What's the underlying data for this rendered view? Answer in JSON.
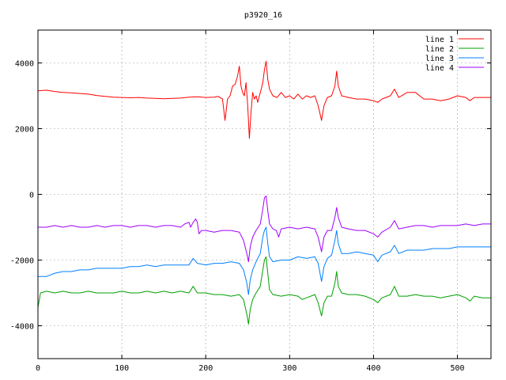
{
  "chart_data": {
    "type": "line",
    "title": "p3920_16",
    "xlabel": "",
    "ylabel": "",
    "xlim": [
      0,
      540
    ],
    "ylim": [
      -5000,
      5000
    ],
    "xticks": [
      0,
      100,
      200,
      300,
      400,
      500
    ],
    "yticks": [
      -4000,
      -2000,
      0,
      2000,
      4000
    ],
    "grid": true,
    "legend_position": "top-right",
    "series": [
      {
        "name": "line 1",
        "color": "#ff0000",
        "points": [
          [
            0,
            3150
          ],
          [
            10,
            3170
          ],
          [
            20,
            3130
          ],
          [
            30,
            3100
          ],
          [
            40,
            3090
          ],
          [
            50,
            3070
          ],
          [
            60,
            3050
          ],
          [
            70,
            3010
          ],
          [
            80,
            2980
          ],
          [
            90,
            2960
          ],
          [
            100,
            2950
          ],
          [
            110,
            2940
          ],
          [
            120,
            2950
          ],
          [
            130,
            2930
          ],
          [
            140,
            2920
          ],
          [
            150,
            2910
          ],
          [
            160,
            2920
          ],
          [
            170,
            2930
          ],
          [
            180,
            2960
          ],
          [
            190,
            2970
          ],
          [
            200,
            2950
          ],
          [
            210,
            2960
          ],
          [
            215,
            2980
          ],
          [
            220,
            2900
          ],
          [
            223,
            2250
          ],
          [
            226,
            2900
          ],
          [
            229,
            3000
          ],
          [
            232,
            3300
          ],
          [
            235,
            3350
          ],
          [
            238,
            3600
          ],
          [
            240,
            3900
          ],
          [
            242,
            3300
          ],
          [
            244,
            3100
          ],
          [
            246,
            3000
          ],
          [
            248,
            3400
          ],
          [
            250,
            2700
          ],
          [
            252,
            1700
          ],
          [
            254,
            2500
          ],
          [
            256,
            3100
          ],
          [
            258,
            2900
          ],
          [
            260,
            3000
          ],
          [
            262,
            2800
          ],
          [
            264,
            3000
          ],
          [
            266,
            3200
          ],
          [
            268,
            3400
          ],
          [
            270,
            3800
          ],
          [
            272,
            4050
          ],
          [
            274,
            3500
          ],
          [
            276,
            3200
          ],
          [
            280,
            3000
          ],
          [
            285,
            2950
          ],
          [
            290,
            3100
          ],
          [
            295,
            2950
          ],
          [
            300,
            3000
          ],
          [
            305,
            2900
          ],
          [
            310,
            3050
          ],
          [
            315,
            2900
          ],
          [
            320,
            3000
          ],
          [
            325,
            2950
          ],
          [
            330,
            3000
          ],
          [
            334,
            2700
          ],
          [
            338,
            2250
          ],
          [
            341,
            2700
          ],
          [
            345,
            2950
          ],
          [
            350,
            3000
          ],
          [
            354,
            3300
          ],
          [
            356,
            3750
          ],
          [
            358,
            3300
          ],
          [
            362,
            3000
          ],
          [
            370,
            2950
          ],
          [
            380,
            2900
          ],
          [
            390,
            2900
          ],
          [
            400,
            2850
          ],
          [
            405,
            2800
          ],
          [
            410,
            2900
          ],
          [
            420,
            3000
          ],
          [
            425,
            3200
          ],
          [
            430,
            2950
          ],
          [
            440,
            3100
          ],
          [
            450,
            3100
          ],
          [
            460,
            2900
          ],
          [
            470,
            2900
          ],
          [
            480,
            2850
          ],
          [
            490,
            2900
          ],
          [
            500,
            3000
          ],
          [
            510,
            2950
          ],
          [
            515,
            2850
          ],
          [
            520,
            2950
          ],
          [
            530,
            2950
          ],
          [
            540,
            2950
          ]
        ]
      },
      {
        "name": "line 2",
        "color": "#00a000",
        "points": [
          [
            0,
            -3450
          ],
          [
            3,
            -3000
          ],
          [
            10,
            -2950
          ],
          [
            20,
            -3000
          ],
          [
            30,
            -2950
          ],
          [
            40,
            -3000
          ],
          [
            50,
            -3000
          ],
          [
            60,
            -2950
          ],
          [
            70,
            -3000
          ],
          [
            80,
            -3000
          ],
          [
            90,
            -3000
          ],
          [
            100,
            -2950
          ],
          [
            110,
            -3000
          ],
          [
            120,
            -3000
          ],
          [
            130,
            -2950
          ],
          [
            140,
            -3000
          ],
          [
            150,
            -2950
          ],
          [
            160,
            -3000
          ],
          [
            170,
            -2950
          ],
          [
            180,
            -3000
          ],
          [
            185,
            -2800
          ],
          [
            190,
            -3000
          ],
          [
            200,
            -3000
          ],
          [
            210,
            -3050
          ],
          [
            220,
            -3050
          ],
          [
            230,
            -3100
          ],
          [
            240,
            -3050
          ],
          [
            245,
            -3200
          ],
          [
            249,
            -3650
          ],
          [
            251,
            -3950
          ],
          [
            253,
            -3500
          ],
          [
            256,
            -3200
          ],
          [
            260,
            -3000
          ],
          [
            265,
            -2800
          ],
          [
            268,
            -2300
          ],
          [
            270,
            -2000
          ],
          [
            272,
            -1900
          ],
          [
            274,
            -2400
          ],
          [
            276,
            -2900
          ],
          [
            280,
            -3050
          ],
          [
            290,
            -3100
          ],
          [
            300,
            -3050
          ],
          [
            310,
            -3100
          ],
          [
            315,
            -3200
          ],
          [
            320,
            -3150
          ],
          [
            330,
            -3050
          ],
          [
            334,
            -3300
          ],
          [
            338,
            -3700
          ],
          [
            341,
            -3300
          ],
          [
            345,
            -3100
          ],
          [
            350,
            -3100
          ],
          [
            354,
            -2700
          ],
          [
            356,
            -2350
          ],
          [
            358,
            -2800
          ],
          [
            362,
            -3000
          ],
          [
            370,
            -3050
          ],
          [
            380,
            -3050
          ],
          [
            390,
            -3100
          ],
          [
            400,
            -3200
          ],
          [
            405,
            -3300
          ],
          [
            410,
            -3150
          ],
          [
            420,
            -3050
          ],
          [
            425,
            -2800
          ],
          [
            430,
            -3100
          ],
          [
            440,
            -3100
          ],
          [
            450,
            -3050
          ],
          [
            460,
            -3100
          ],
          [
            470,
            -3100
          ],
          [
            480,
            -3150
          ],
          [
            490,
            -3100
          ],
          [
            500,
            -3050
          ],
          [
            510,
            -3150
          ],
          [
            515,
            -3250
          ],
          [
            520,
            -3100
          ],
          [
            530,
            -3150
          ],
          [
            540,
            -3150
          ]
        ]
      },
      {
        "name": "line 3",
        "color": "#0080ff",
        "points": [
          [
            0,
            -2500
          ],
          [
            10,
            -2500
          ],
          [
            20,
            -2400
          ],
          [
            30,
            -2350
          ],
          [
            40,
            -2350
          ],
          [
            50,
            -2300
          ],
          [
            60,
            -2300
          ],
          [
            70,
            -2250
          ],
          [
            80,
            -2250
          ],
          [
            90,
            -2250
          ],
          [
            100,
            -2250
          ],
          [
            110,
            -2200
          ],
          [
            120,
            -2200
          ],
          [
            130,
            -2150
          ],
          [
            140,
            -2200
          ],
          [
            150,
            -2150
          ],
          [
            160,
            -2150
          ],
          [
            170,
            -2150
          ],
          [
            180,
            -2150
          ],
          [
            185,
            -1950
          ],
          [
            190,
            -2100
          ],
          [
            200,
            -2150
          ],
          [
            210,
            -2100
          ],
          [
            220,
            -2100
          ],
          [
            230,
            -2050
          ],
          [
            240,
            -2100
          ],
          [
            245,
            -2300
          ],
          [
            249,
            -2700
          ],
          [
            251,
            -3050
          ],
          [
            253,
            -2600
          ],
          [
            256,
            -2300
          ],
          [
            260,
            -2050
          ],
          [
            265,
            -1800
          ],
          [
            268,
            -1300
          ],
          [
            270,
            -1100
          ],
          [
            272,
            -1000
          ],
          [
            274,
            -1500
          ],
          [
            276,
            -1900
          ],
          [
            280,
            -2050
          ],
          [
            290,
            -2000
          ],
          [
            300,
            -2000
          ],
          [
            310,
            -1900
          ],
          [
            320,
            -1950
          ],
          [
            330,
            -1900
          ],
          [
            334,
            -2100
          ],
          [
            338,
            -2650
          ],
          [
            341,
            -2200
          ],
          [
            345,
            -1950
          ],
          [
            350,
            -1850
          ],
          [
            354,
            -1400
          ],
          [
            356,
            -1100
          ],
          [
            358,
            -1500
          ],
          [
            362,
            -1800
          ],
          [
            370,
            -1800
          ],
          [
            380,
            -1750
          ],
          [
            390,
            -1800
          ],
          [
            400,
            -1850
          ],
          [
            405,
            -2050
          ],
          [
            410,
            -1850
          ],
          [
            420,
            -1750
          ],
          [
            425,
            -1550
          ],
          [
            430,
            -1800
          ],
          [
            440,
            -1700
          ],
          [
            450,
            -1700
          ],
          [
            460,
            -1700
          ],
          [
            470,
            -1650
          ],
          [
            480,
            -1650
          ],
          [
            490,
            -1650
          ],
          [
            500,
            -1600
          ],
          [
            510,
            -1600
          ],
          [
            520,
            -1600
          ],
          [
            530,
            -1600
          ],
          [
            540,
            -1600
          ]
        ]
      },
      {
        "name": "line 4",
        "color": "#a000ff",
        "points": [
          [
            0,
            -1000
          ],
          [
            10,
            -1000
          ],
          [
            20,
            -950
          ],
          [
            30,
            -1000
          ],
          [
            40,
            -950
          ],
          [
            50,
            -1000
          ],
          [
            60,
            -1000
          ],
          [
            70,
            -950
          ],
          [
            80,
            -1000
          ],
          [
            90,
            -950
          ],
          [
            100,
            -950
          ],
          [
            110,
            -1000
          ],
          [
            120,
            -950
          ],
          [
            130,
            -950
          ],
          [
            140,
            -1000
          ],
          [
            150,
            -950
          ],
          [
            160,
            -950
          ],
          [
            170,
            -1000
          ],
          [
            175,
            -900
          ],
          [
            180,
            -850
          ],
          [
            182,
            -1000
          ],
          [
            185,
            -850
          ],
          [
            188,
            -750
          ],
          [
            190,
            -850
          ],
          [
            192,
            -1200
          ],
          [
            195,
            -1100
          ],
          [
            200,
            -1100
          ],
          [
            210,
            -1150
          ],
          [
            220,
            -1100
          ],
          [
            230,
            -1100
          ],
          [
            240,
            -1150
          ],
          [
            245,
            -1400
          ],
          [
            249,
            -1800
          ],
          [
            251,
            -2050
          ],
          [
            253,
            -1600
          ],
          [
            256,
            -1300
          ],
          [
            260,
            -1100
          ],
          [
            265,
            -900
          ],
          [
            268,
            -450
          ],
          [
            270,
            -100
          ],
          [
            272,
            -50
          ],
          [
            274,
            -500
          ],
          [
            276,
            -900
          ],
          [
            280,
            -1050
          ],
          [
            284,
            -1100
          ],
          [
            287,
            -1300
          ],
          [
            290,
            -1050
          ],
          [
            300,
            -1000
          ],
          [
            310,
            -1050
          ],
          [
            320,
            -1000
          ],
          [
            330,
            -1050
          ],
          [
            334,
            -1300
          ],
          [
            338,
            -1750
          ],
          [
            341,
            -1300
          ],
          [
            345,
            -1100
          ],
          [
            350,
            -1100
          ],
          [
            354,
            -700
          ],
          [
            356,
            -400
          ],
          [
            358,
            -700
          ],
          [
            362,
            -1000
          ],
          [
            370,
            -1050
          ],
          [
            380,
            -1100
          ],
          [
            390,
            -1100
          ],
          [
            400,
            -1200
          ],
          [
            405,
            -1300
          ],
          [
            410,
            -1150
          ],
          [
            420,
            -1000
          ],
          [
            425,
            -800
          ],
          [
            430,
            -1050
          ],
          [
            440,
            -1000
          ],
          [
            450,
            -950
          ],
          [
            460,
            -950
          ],
          [
            470,
            -1000
          ],
          [
            480,
            -950
          ],
          [
            490,
            -950
          ],
          [
            500,
            -950
          ],
          [
            510,
            -900
          ],
          [
            520,
            -950
          ],
          [
            530,
            -900
          ],
          [
            540,
            -900
          ]
        ]
      }
    ]
  }
}
